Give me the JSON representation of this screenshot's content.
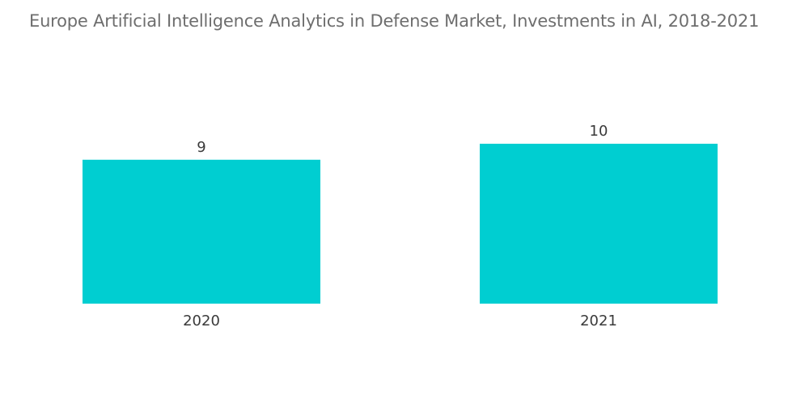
{
  "chart_data": {
    "type": "bar",
    "title": "Europe Artificial Intelligence Analytics in Defense Market, Investments in AI, 2018-2021",
    "categories": [
      "2020",
      "2021"
    ],
    "values": [
      9,
      10
    ],
    "xlabel": "",
    "ylabel": "",
    "grid": false,
    "legend": "none",
    "bar_color": "#00CED1"
  }
}
